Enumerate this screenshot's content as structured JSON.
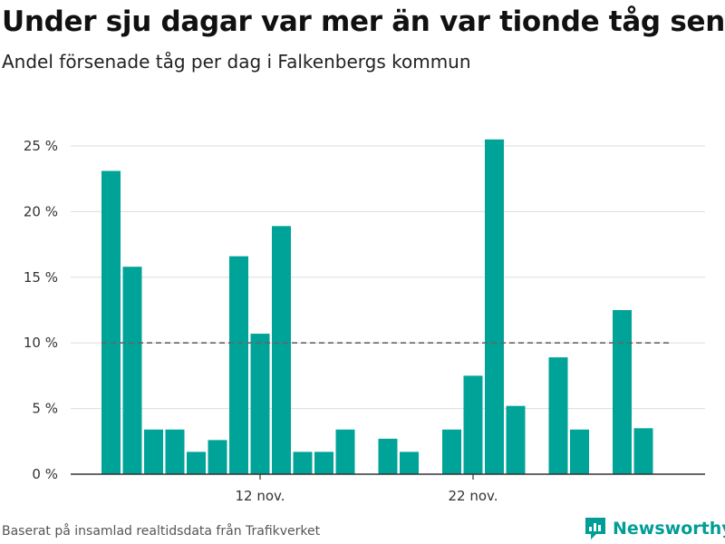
{
  "title": "Under sju dagar var mer än var tionde tåg sent",
  "subtitle": "Andel försenade tåg per dag i Falkenbergs kommun",
  "source": "Baserat på insamlad realtidsdata från Trafikverket",
  "logo": {
    "text": "Newsworthy",
    "icon": "newsworthy-logo-icon"
  },
  "colors": {
    "bar": "#00a398",
    "grid": "#dddddd",
    "axis": "#333333",
    "reference": "#666666",
    "logo": "#009e96"
  },
  "chart_data": {
    "type": "bar",
    "unit": "%",
    "x_start_day": 4,
    "x_end_day": 30,
    "x_ticks": [
      {
        "day": 12,
        "label": "12 nov."
      },
      {
        "day": 22,
        "label": "22 nov."
      }
    ],
    "values": [
      {
        "day": 5,
        "value": 23.1
      },
      {
        "day": 6,
        "value": 15.8
      },
      {
        "day": 7,
        "value": 3.4
      },
      {
        "day": 8,
        "value": 3.4
      },
      {
        "day": 9,
        "value": 1.7
      },
      {
        "day": 10,
        "value": 2.6
      },
      {
        "day": 11,
        "value": 16.6
      },
      {
        "day": 12,
        "value": 10.7
      },
      {
        "day": 13,
        "value": 18.9
      },
      {
        "day": 14,
        "value": 1.7
      },
      {
        "day": 15,
        "value": 1.7
      },
      {
        "day": 16,
        "value": 3.4
      },
      {
        "day": 18,
        "value": 2.7
      },
      {
        "day": 19,
        "value": 1.7
      },
      {
        "day": 21,
        "value": 3.4
      },
      {
        "day": 22,
        "value": 7.5
      },
      {
        "day": 23,
        "value": 25.5
      },
      {
        "day": 24,
        "value": 5.2
      },
      {
        "day": 26,
        "value": 8.9
      },
      {
        "day": 27,
        "value": 3.4
      },
      {
        "day": 29,
        "value": 12.5
      },
      {
        "day": 30,
        "value": 3.5
      }
    ],
    "y_ticks": [
      0,
      5,
      10,
      15,
      20,
      25
    ],
    "y_tick_labels": [
      "0 %",
      "5 %",
      "10 %",
      "15 %",
      "20 %",
      "25 %"
    ],
    "ylim": [
      0,
      25
    ],
    "reference_line": 10,
    "grid": true,
    "legend": "none"
  }
}
